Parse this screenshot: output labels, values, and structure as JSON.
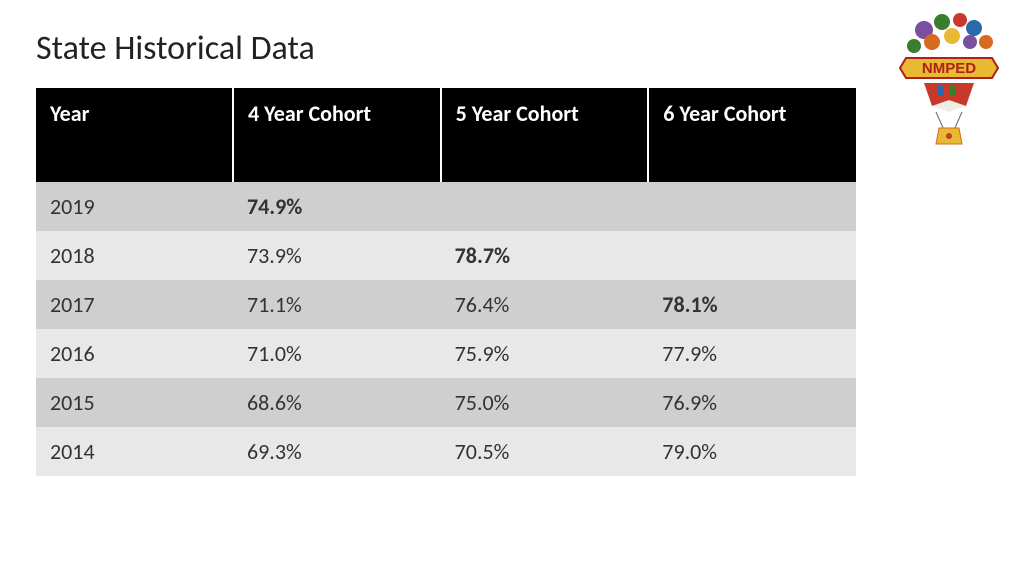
{
  "title": "State Historical Data",
  "logo": {
    "banner_text": "NMPED",
    "banner_bg": "#e8b933",
    "banner_text_color": "#b02018"
  },
  "table": {
    "type": "table",
    "header_bg": "#000000",
    "header_text_color": "#ffffff",
    "row_odd_bg": "#cfcfcf",
    "row_even_bg": "#e8e8e8",
    "cell_text_color": "#333333",
    "header_fontsize": 22,
    "cell_fontsize": 22,
    "columns": [
      {
        "key": "year",
        "label": "Year"
      },
      {
        "key": "c4",
        "label": "4 Year Cohort"
      },
      {
        "key": "c5",
        "label": "5 Year Cohort"
      },
      {
        "key": "c6",
        "label": "6 Year Cohort"
      }
    ],
    "rows": [
      {
        "year": "2019",
        "c4": "74.9%",
        "c5": "",
        "c6": "",
        "bold": [
          "c4"
        ]
      },
      {
        "year": "2018",
        "c4": "73.9%",
        "c5": "78.7%",
        "c6": "",
        "bold": [
          "c5"
        ]
      },
      {
        "year": "2017",
        "c4": "71.1%",
        "c5": "76.4%",
        "c6": "78.1%",
        "bold": [
          "c6"
        ]
      },
      {
        "year": "2016",
        "c4": "71.0%",
        "c5": "75.9%",
        "c6": "77.9%",
        "bold": []
      },
      {
        "year": "2015",
        "c4": "68.6%",
        "c5": "75.0%",
        "c6": "76.9%",
        "bold": []
      },
      {
        "year": "2014",
        "c4": "69.3%",
        "c5": "70.5%",
        "c6": "79.0%",
        "bold": []
      }
    ]
  }
}
